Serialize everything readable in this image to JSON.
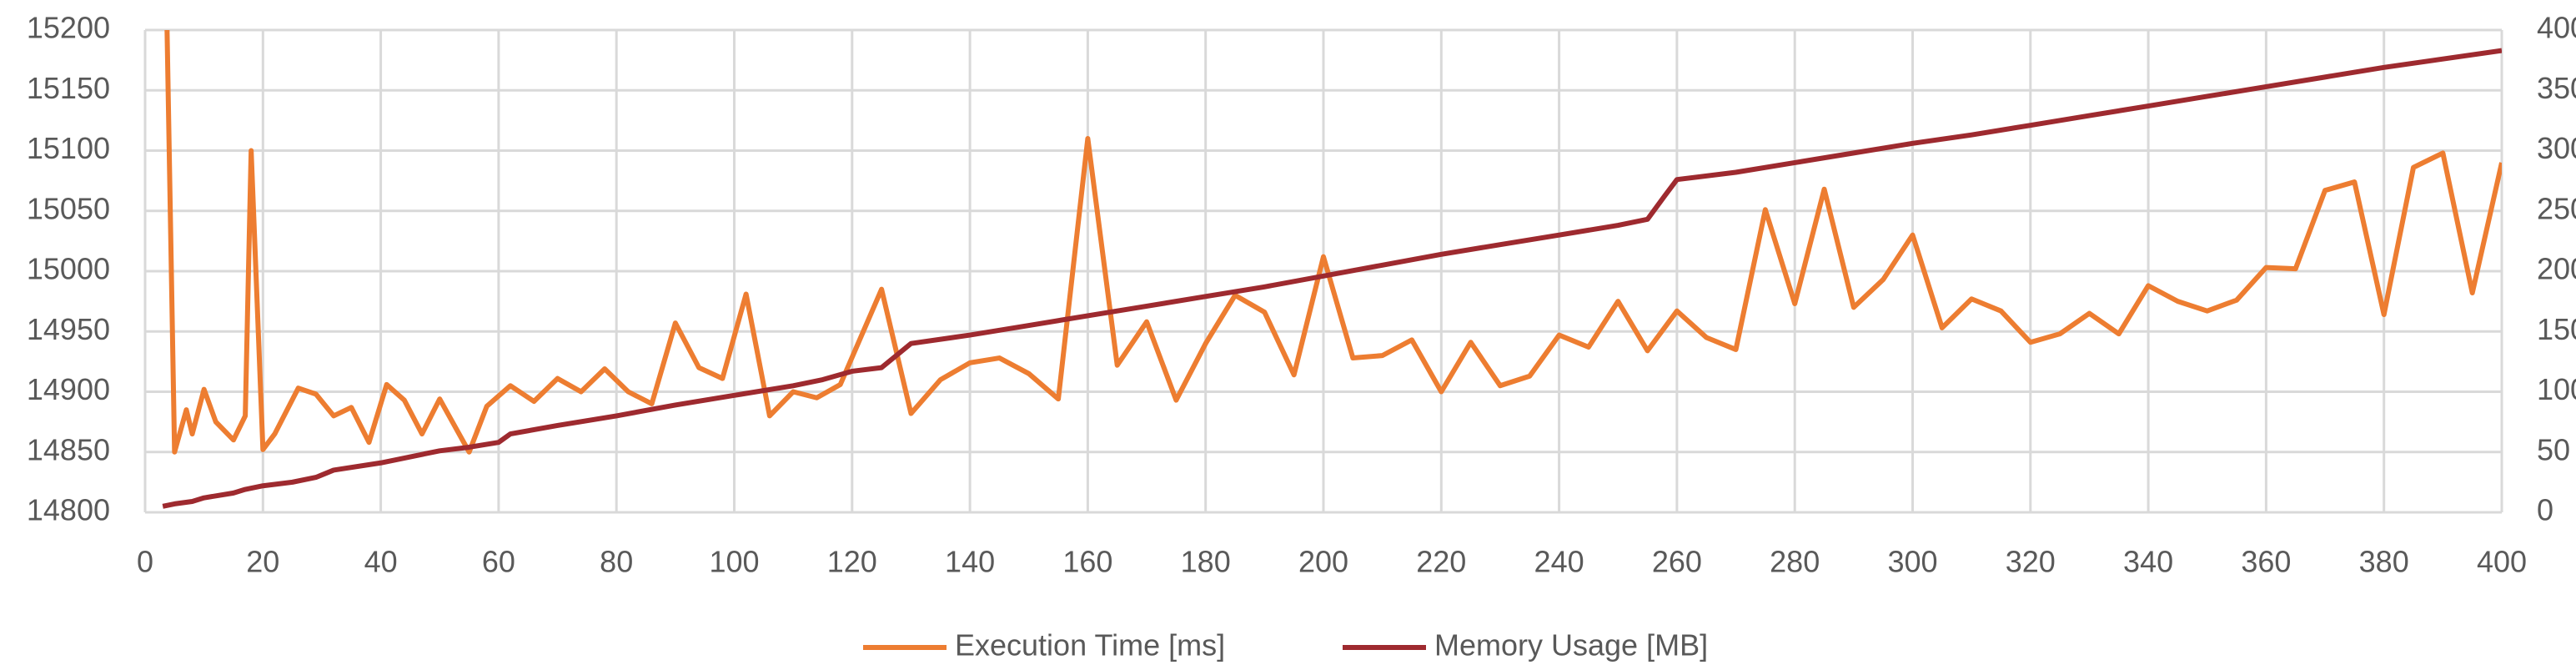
{
  "chart_data": {
    "type": "line",
    "xlim": [
      0,
      400
    ],
    "xticks": [
      0,
      20,
      40,
      60,
      80,
      100,
      120,
      140,
      160,
      180,
      200,
      220,
      240,
      260,
      280,
      300,
      320,
      340,
      360,
      380,
      400
    ],
    "ylim": [
      14800,
      15200
    ],
    "yticks": [
      14800,
      14850,
      14900,
      14950,
      15000,
      15050,
      15100,
      15150,
      15200
    ],
    "y2lim": [
      0,
      400
    ],
    "y2ticks": [
      0,
      50,
      100,
      150,
      200,
      250,
      300,
      350,
      400
    ],
    "grid": true,
    "legend": "bottom",
    "series": [
      {
        "name": "Execution Time [ms]",
        "color": "#ed7d31",
        "x": [
          3,
          5,
          7,
          8,
          10,
          12,
          15,
          17,
          18,
          20,
          22,
          26,
          29,
          32,
          35,
          38,
          41,
          44,
          47,
          50,
          55,
          58,
          62,
          66,
          70,
          74,
          78,
          82,
          86,
          90,
          94,
          98,
          102,
          106,
          110,
          114,
          118,
          125,
          130,
          135,
          140,
          145,
          150,
          155,
          160,
          165,
          170,
          175,
          180,
          185,
          190,
          195,
          200,
          205,
          210,
          215,
          220,
          225,
          230,
          235,
          240,
          245,
          250,
          255,
          260,
          265,
          270,
          275,
          280,
          285,
          290,
          295,
          300,
          305,
          310,
          315,
          320,
          325,
          330,
          335,
          340,
          345,
          350,
          355,
          360,
          365,
          370,
          375,
          380,
          385,
          390,
          395,
          400
        ],
        "values": [
          15400,
          14850,
          14885,
          14865,
          14902,
          14875,
          14860,
          14880,
          15100,
          14852,
          14865,
          14903,
          14898,
          14880,
          14887,
          14858,
          14906,
          14893,
          14865,
          14894,
          14850,
          14888,
          14905,
          14892,
          14911,
          14900,
          14919,
          14900,
          14890,
          14957,
          14920,
          14911,
          14981,
          14880,
          14900,
          14895,
          14906,
          14985,
          14882,
          14910,
          14924,
          14928,
          14915,
          14894,
          15110,
          14922,
          14958,
          14893,
          14940,
          14980,
          14966,
          14914,
          15012,
          14928,
          14930,
          14943,
          14900,
          14941,
          14905,
          14913,
          14947,
          14937,
          14975,
          14934,
          14967,
          14945,
          14935,
          15051,
          14973,
          15068,
          14970,
          14993,
          15030,
          14953,
          14977,
          14967,
          14941,
          14948,
          14965,
          14948,
          14988,
          14975,
          14967,
          14976,
          15003,
          15002,
          15067,
          15074,
          14964,
          15086,
          15098,
          14982,
          15090
        ]
      },
      {
        "name": "Memory Usage [MB]",
        "color": "#9e2a2f",
        "axis": "y2",
        "x": [
          3,
          5,
          8,
          10,
          15,
          17,
          20,
          25,
          29,
          32,
          40,
          45,
          50,
          55,
          60,
          62,
          70,
          80,
          90,
          100,
          110,
          115,
          120,
          125,
          130,
          140,
          150,
          160,
          170,
          180,
          190,
          200,
          210,
          220,
          230,
          240,
          250,
          255,
          258,
          260,
          270,
          280,
          290,
          300,
          310,
          320,
          330,
          340,
          350,
          360,
          370,
          380,
          390,
          400
        ],
        "values": [
          5,
          7,
          9,
          12,
          16,
          19,
          22,
          25,
          29,
          35,
          41,
          46,
          51,
          54,
          58,
          65,
          72,
          80,
          89,
          97,
          105,
          110,
          117,
          120,
          140,
          147,
          155,
          163,
          171,
          179,
          187,
          196,
          205,
          214,
          222,
          230,
          238,
          243,
          263,
          276,
          282,
          290,
          298,
          306,
          313,
          321,
          329,
          337,
          345,
          353,
          361,
          369,
          376,
          383
        ]
      }
    ]
  }
}
